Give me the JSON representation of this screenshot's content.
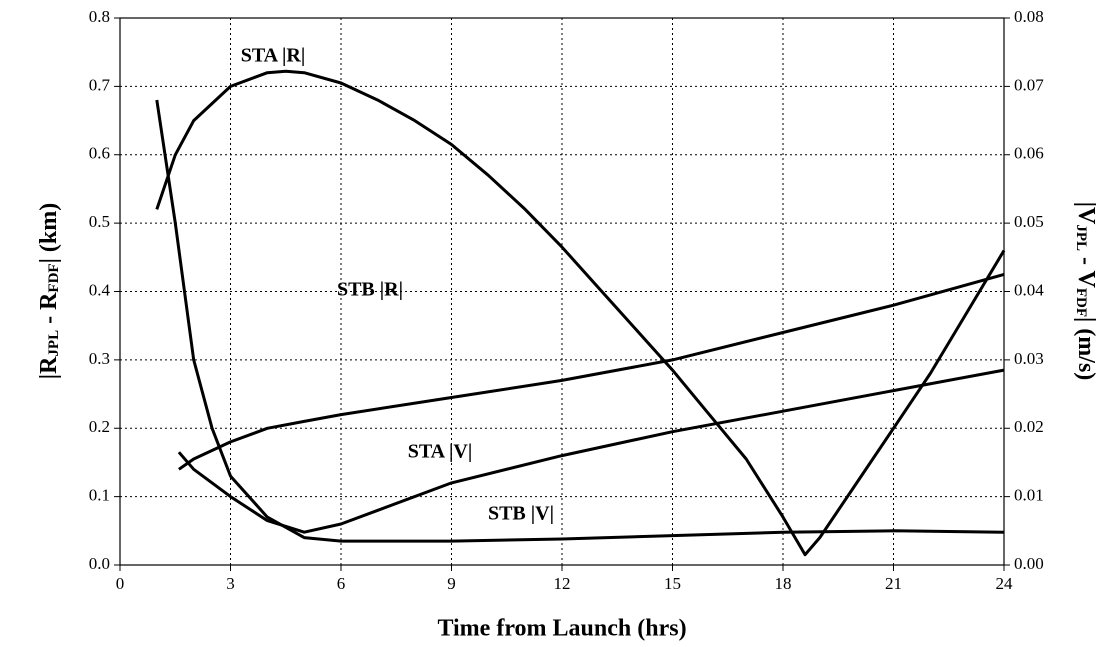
{
  "chart_data": {
    "type": "line",
    "xlabel": "Time from Launch (hrs)",
    "ylabel_parts": [
      "|R",
      "JPL",
      " - R",
      "FDF",
      "| (km)"
    ],
    "y2label_parts": [
      "|V",
      "JPL",
      " - V",
      "FDF",
      "| (m/s)"
    ],
    "xlim": [
      0,
      24
    ],
    "xticks": [
      0,
      3,
      6,
      9,
      12,
      15,
      18,
      21,
      24
    ],
    "ylim": [
      0,
      0.8
    ],
    "yticks": [
      {
        "value": 0,
        "label": "0.0"
      },
      0.1,
      0.2,
      0.3,
      0.4,
      0.5,
      0.6,
      0.7,
      0.8
    ],
    "y2lim": [
      0,
      0.08
    ],
    "y2ticks": [
      {
        "value": 0,
        "label": "0.00"
      },
      0.01,
      0.02,
      0.03,
      0.04,
      0.05,
      0.06,
      0.07,
      0.08
    ],
    "grid": true,
    "series": [
      {
        "name": "STA |R|",
        "color": "#000000",
        "axis": "y",
        "x": [
          1,
          1.5,
          2,
          3,
          4,
          4.5,
          5,
          6,
          7,
          8,
          9,
          10,
          11,
          12,
          13,
          14,
          15,
          16,
          17,
          18,
          18.6,
          19,
          20,
          21,
          22,
          23,
          24
        ],
        "values": [
          0.52,
          0.6,
          0.65,
          0.7,
          0.72,
          0.722,
          0.72,
          0.705,
          0.68,
          0.65,
          0.615,
          0.57,
          0.52,
          0.465,
          0.405,
          0.345,
          0.285,
          0.22,
          0.155,
          0.07,
          0.015,
          0.04,
          0.12,
          0.2,
          0.28,
          0.37,
          0.46
        ]
      },
      {
        "name": "STB |R|",
        "color": "#000000",
        "axis": "y",
        "x": [
          1.6,
          2,
          3,
          4,
          5,
          6,
          9,
          12,
          15,
          18,
          21,
          24
        ],
        "values": [
          0.14,
          0.155,
          0.18,
          0.2,
          0.21,
          0.22,
          0.245,
          0.27,
          0.3,
          0.34,
          0.38,
          0.425
        ]
      },
      {
        "name": "STA |V|",
        "color": "#000000",
        "axis": "y2",
        "x": [
          1.6,
          2,
          3,
          4,
          5,
          6,
          7,
          9,
          12,
          15,
          18,
          21,
          24
        ],
        "values": [
          0.0165,
          0.014,
          0.01,
          0.0065,
          0.0048,
          0.006,
          0.008,
          0.012,
          0.016,
          0.0195,
          0.0225,
          0.0255,
          0.0285
        ]
      },
      {
        "name": "STB |V|",
        "color": "#000000",
        "axis": "y2",
        "x": [
          1,
          1.5,
          2,
          2.5,
          3,
          4,
          5,
          6,
          9,
          12,
          15,
          18,
          21,
          24
        ],
        "values": [
          0.068,
          0.05,
          0.03,
          0.02,
          0.013,
          0.007,
          0.004,
          0.0035,
          0.0035,
          0.0038,
          0.0043,
          0.0048,
          0.005,
          0.0048
        ]
      }
    ]
  }
}
